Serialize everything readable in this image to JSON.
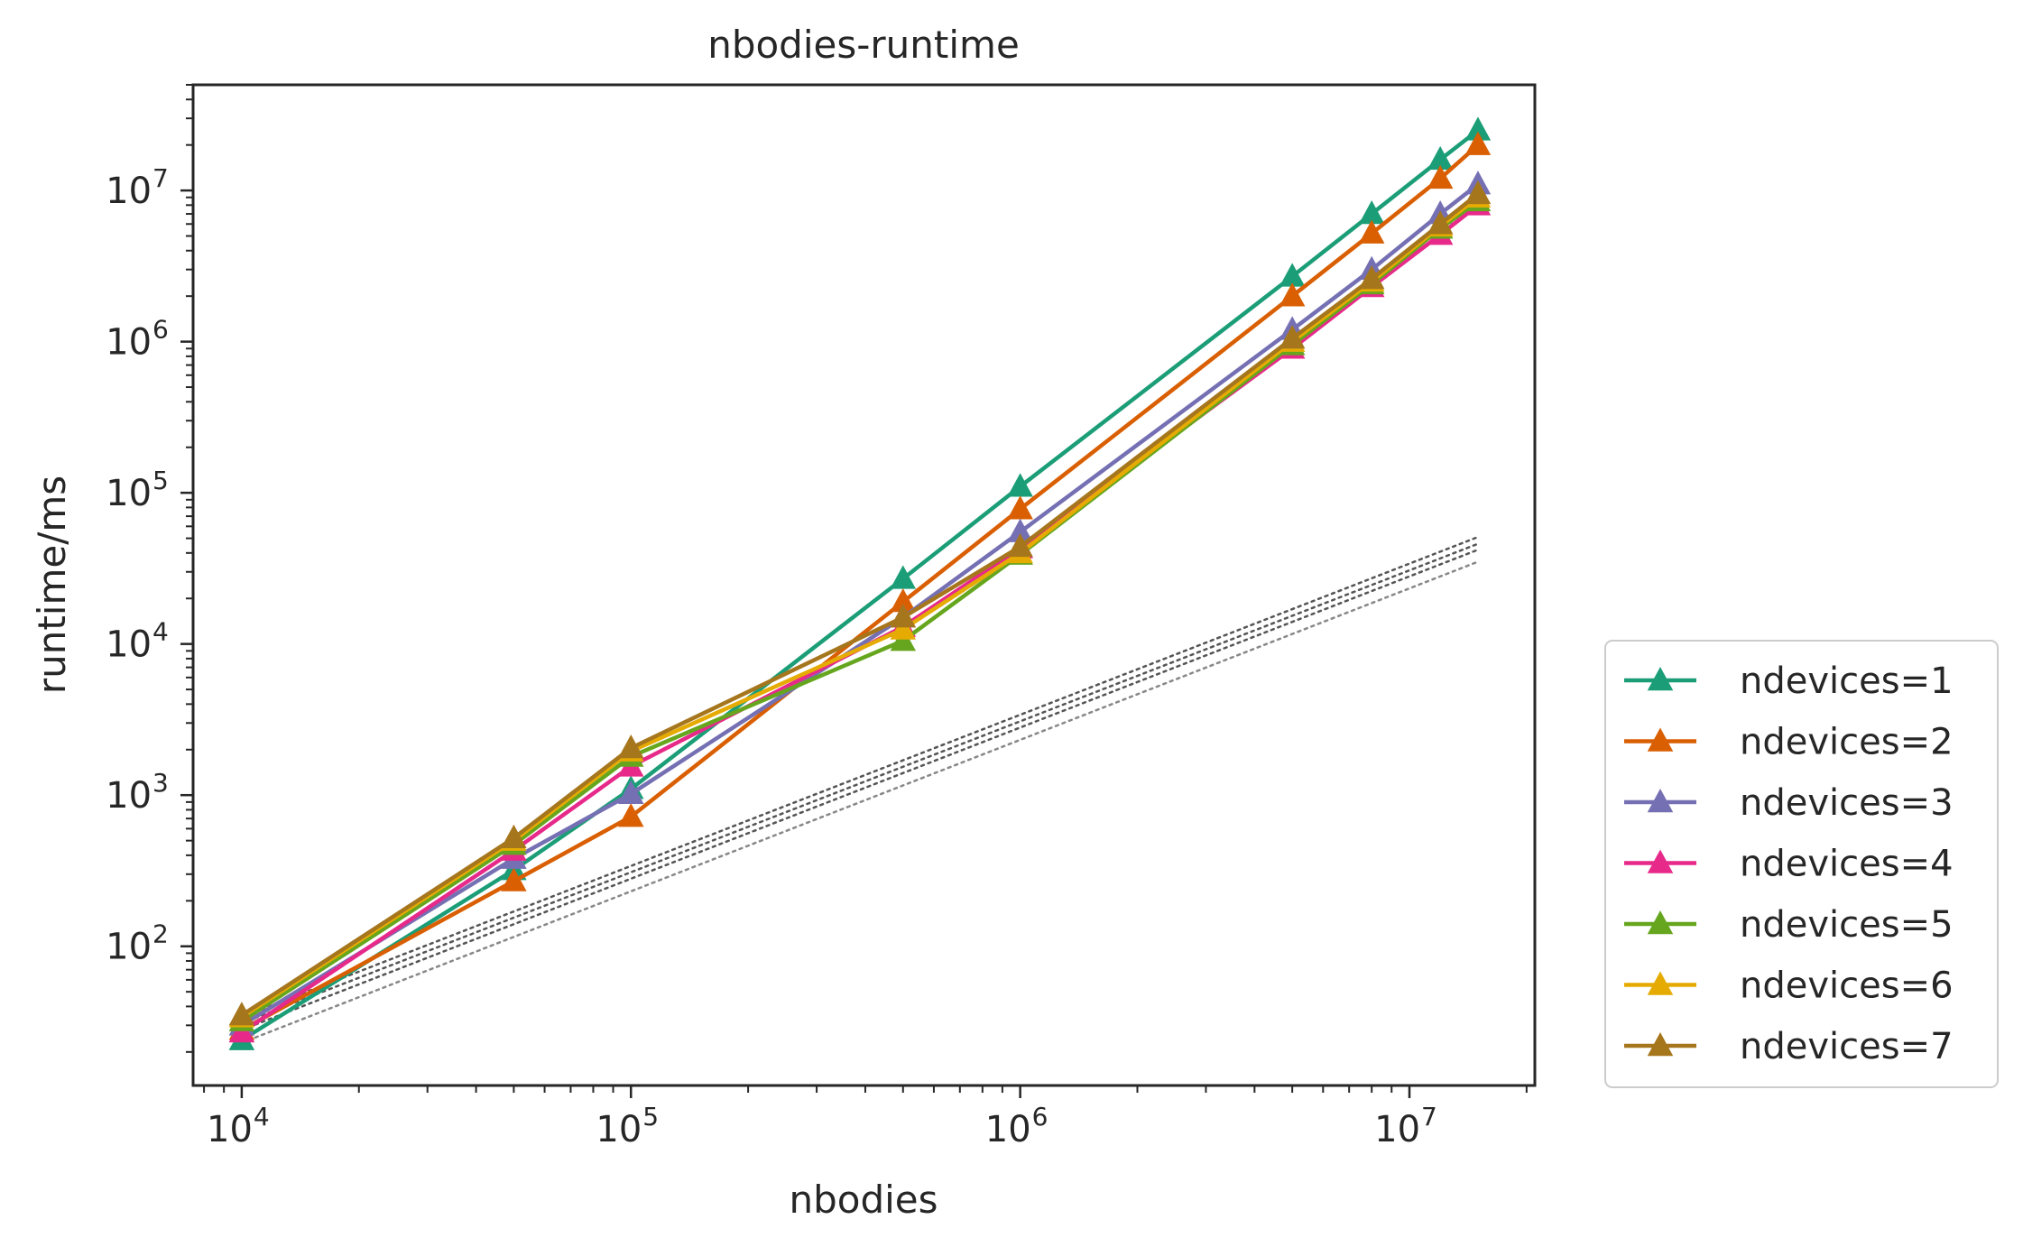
{
  "chart_data": {
    "type": "line",
    "title": "nbodies-runtime",
    "xlabel": "nbodies",
    "ylabel": "runtime/ms",
    "xscale": "log",
    "yscale": "log",
    "xlim": [
      7500,
      21000000
    ],
    "ylim": [
      12,
      50000000
    ],
    "x_ticks": [
      {
        "base": "10",
        "exp": "4",
        "value": 10000
      },
      {
        "base": "10",
        "exp": "5",
        "value": 100000
      },
      {
        "base": "10",
        "exp": "6",
        "value": 1000000
      },
      {
        "base": "10",
        "exp": "7",
        "value": 10000000
      }
    ],
    "y_ticks": [
      {
        "base": "10",
        "exp": "2",
        "value": 100
      },
      {
        "base": "10",
        "exp": "3",
        "value": 1000
      },
      {
        "base": "10",
        "exp": "4",
        "value": 10000
      },
      {
        "base": "10",
        "exp": "5",
        "value": 100000
      },
      {
        "base": "10",
        "exp": "6",
        "value": 1000000
      },
      {
        "base": "10",
        "exp": "7",
        "value": 10000000
      }
    ],
    "grid": false,
    "legend_position": "outside-right-bottom",
    "x": [
      10000,
      50000,
      100000,
      500000,
      1000000,
      5000000,
      8000000,
      12000000,
      15000000
    ],
    "series": [
      {
        "name": "ndevices=1",
        "color": "#1b9e77",
        "marker": "triangle-up",
        "values": [
          24,
          320,
          1100,
          27000,
          110000,
          2700000,
          7000000,
          16000000,
          25000000
        ]
      },
      {
        "name": "ndevices=2",
        "color": "#d95f02",
        "marker": "triangle-up",
        "values": [
          28,
          270,
          720,
          19000,
          78000,
          2000000,
          5200000,
          12000000,
          20000000
        ]
      },
      {
        "name": "ndevices=3",
        "color": "#7570b3",
        "marker": "triangle-up",
        "values": [
          30,
          380,
          1020,
          15000,
          55000,
          1200000,
          3000000,
          7000000,
          11000000
        ]
      },
      {
        "name": "ndevices=4",
        "color": "#e7298a",
        "marker": "triangle-up",
        "values": [
          27,
          430,
          1550,
          13000,
          43000,
          900000,
          2300000,
          5100000,
          8000000
        ]
      },
      {
        "name": "ndevices=5",
        "color": "#66a61e",
        "marker": "triangle-up",
        "values": [
          32,
          470,
          1800,
          10500,
          39000,
          950000,
          2400000,
          5600000,
          8500000
        ]
      },
      {
        "name": "ndevices=6",
        "color": "#e6ab02",
        "marker": "triangle-up",
        "values": [
          34,
          500,
          1950,
          12500,
          40000,
          1000000,
          2500000,
          5800000,
          9000000
        ]
      },
      {
        "name": "ndevices=7",
        "color": "#a6761d",
        "marker": "triangle-up",
        "values": [
          35,
          520,
          2050,
          15000,
          44000,
          1050000,
          2600000,
          6000000,
          9500000
        ]
      }
    ],
    "reference_lines": [
      {
        "color": "#555555",
        "style": "dotted",
        "x": [
          10000,
          15000000
        ],
        "y": [
          34,
          51000
        ]
      },
      {
        "color": "#555555",
        "style": "dotted",
        "x": [
          10000,
          15000000
        ],
        "y": [
          31,
          46000
        ]
      },
      {
        "color": "#555555",
        "style": "dotted",
        "x": [
          10000,
          15000000
        ],
        "y": [
          28,
          42000
        ]
      },
      {
        "color": "#888888",
        "style": "dotted",
        "x": [
          10000,
          15000000
        ],
        "y": [
          23,
          35000
        ]
      }
    ]
  }
}
